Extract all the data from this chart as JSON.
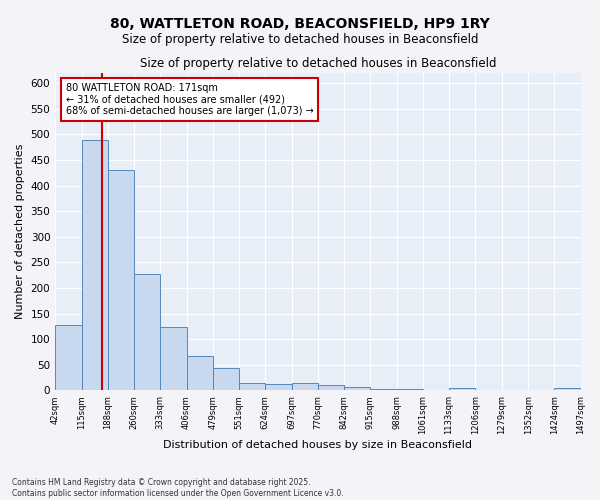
{
  "title1": "80, WATTLETON ROAD, BEACONSFIELD, HP9 1RY",
  "title2": "Size of property relative to detached houses in Beaconsfield",
  "xlabel": "Distribution of detached houses by size in Beaconsfield",
  "ylabel": "Number of detached properties",
  "bar_color": "#c8d8ee",
  "bar_edge_color": "#5588bb",
  "bin_edges": [
    42,
    115,
    188,
    260,
    333,
    406,
    479,
    551,
    624,
    697,
    770,
    842,
    915,
    988,
    1061,
    1133,
    1206,
    1279,
    1352,
    1424,
    1497
  ],
  "bar_heights": [
    128,
    490,
    430,
    228,
    123,
    67,
    43,
    14,
    13,
    15,
    10,
    7,
    2,
    2,
    1,
    5,
    1,
    1,
    0,
    5
  ],
  "property_line_x": 171,
  "property_line_color": "#cc0000",
  "annotation_text": "80 WATTLETON ROAD: 171sqm\n← 31% of detached houses are smaller (492)\n68% of semi-detached houses are larger (1,073) →",
  "annotation_box_color": "#cc0000",
  "ylim": [
    0,
    620
  ],
  "yticks": [
    0,
    50,
    100,
    150,
    200,
    250,
    300,
    350,
    400,
    450,
    500,
    550,
    600
  ],
  "bg_color": "#e8eef8",
  "grid_color": "#ffffff",
  "fig_bg_color": "#f4f4f8",
  "footer1": "Contains HM Land Registry data © Crown copyright and database right 2025.",
  "footer2": "Contains public sector information licensed under the Open Government Licence v3.0."
}
